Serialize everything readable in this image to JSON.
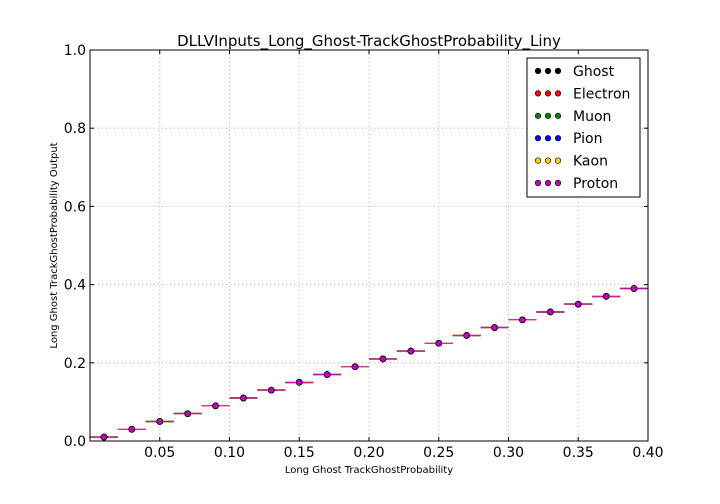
{
  "chart_data": {
    "type": "scatter",
    "title": "DLLVInputs_Long_Ghost-TrackGhostProbability_Liny",
    "xlabel": "Long Ghost TrackGhostProbability",
    "ylabel": "Long Ghost TrackGhostProbability Output",
    "xlim": [
      0.0,
      0.4
    ],
    "ylim": [
      0.0,
      1.0
    ],
    "xticks": [
      "0.05",
      "0.10",
      "0.15",
      "0.20",
      "0.25",
      "0.30",
      "0.35",
      "0.40"
    ],
    "yticks": [
      "0.0",
      "0.2",
      "0.4",
      "0.6",
      "0.8",
      "1.0"
    ],
    "grid": true,
    "legend_position": "top-right",
    "bin_width": 0.02,
    "x": [
      0.01,
      0.03,
      0.05,
      0.07,
      0.09,
      0.11,
      0.13,
      0.15,
      0.17,
      0.19,
      0.21,
      0.23,
      0.25,
      0.27,
      0.29,
      0.31,
      0.33,
      0.35,
      0.37,
      0.39
    ],
    "series": [
      {
        "name": "Ghost",
        "color": "#000000",
        "values": [
          0.01,
          0.03,
          0.05,
          0.07,
          0.09,
          0.11,
          0.13,
          0.15,
          0.17,
          0.19,
          0.21,
          0.23,
          0.25,
          0.27,
          0.29,
          0.31,
          0.33,
          0.35,
          0.37,
          0.39
        ]
      },
      {
        "name": "Electron",
        "color": "#ff0000",
        "values": [
          0.01,
          0.03,
          0.05,
          0.07,
          0.09,
          0.11,
          0.13,
          0.15,
          0.17,
          0.19,
          0.21,
          0.23,
          0.25,
          0.27,
          0.29,
          0.31,
          0.33,
          0.35,
          0.37,
          0.39
        ]
      },
      {
        "name": "Muon",
        "color": "#008000",
        "values": [
          0.01,
          0.03,
          0.05,
          0.07,
          0.09,
          0.11,
          0.13,
          0.15,
          0.17,
          0.19,
          0.21,
          0.23,
          0.25,
          0.27,
          0.29,
          0.31,
          0.33,
          0.35,
          0.37,
          0.39
        ]
      },
      {
        "name": "Pion",
        "color": "#0000ff",
        "values": [
          0.01,
          0.03,
          0.05,
          0.07,
          0.09,
          0.11,
          0.13,
          0.15,
          0.17,
          0.19,
          0.21,
          0.23,
          0.25,
          0.27,
          0.29,
          0.31,
          0.33,
          0.35,
          0.37,
          0.39
        ]
      },
      {
        "name": "Kaon",
        "color": "#ffcc00",
        "values": [
          0.01,
          0.03,
          0.05,
          0.07,
          0.09,
          0.11,
          0.13,
          0.15,
          0.17,
          0.19,
          0.21,
          0.23,
          0.25,
          0.27,
          0.29,
          0.31,
          0.33,
          0.35,
          0.37,
          0.39
        ]
      },
      {
        "name": "Proton",
        "color": "#bf00bf",
        "values": [
          0.01,
          0.03,
          0.05,
          0.07,
          0.09,
          0.11,
          0.13,
          0.15,
          0.17,
          0.19,
          0.21,
          0.23,
          0.25,
          0.27,
          0.29,
          0.31,
          0.33,
          0.35,
          0.37,
          0.39
        ]
      }
    ]
  }
}
